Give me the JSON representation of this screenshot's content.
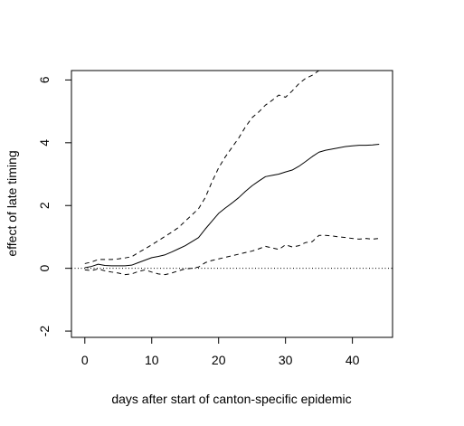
{
  "chart_data": {
    "type": "line",
    "title": "",
    "xlabel": "days after start of canton-specific epidemic",
    "ylabel": "effect of late timing",
    "xlim": [
      -2,
      46
    ],
    "ylim": [
      -2.2,
      6.3
    ],
    "xticks": [
      0,
      10,
      20,
      30,
      40
    ],
    "yticks": [
      -2,
      0,
      2,
      4,
      6
    ],
    "grid": false,
    "legend": "none",
    "reference_line": {
      "y": 0,
      "style": "dotted"
    },
    "series": [
      {
        "role": "estimate",
        "line_style": "solid",
        "x": [
          0,
          1,
          2,
          3,
          4,
          5,
          6,
          7,
          8,
          9,
          10,
          11,
          12,
          13,
          14,
          15,
          16,
          17,
          18,
          19,
          20,
          21,
          22,
          23,
          24,
          25,
          26,
          27,
          28,
          29,
          30,
          31,
          32,
          33,
          34,
          35,
          36,
          37,
          38,
          39,
          40,
          41,
          42,
          43,
          44
        ],
        "y": [
          0.02,
          0.06,
          0.13,
          0.09,
          0.08,
          0.08,
          0.08,
          0.1,
          0.18,
          0.26,
          0.34,
          0.38,
          0.43,
          0.52,
          0.62,
          0.72,
          0.85,
          0.98,
          1.25,
          1.5,
          1.75,
          1.92,
          2.08,
          2.25,
          2.45,
          2.63,
          2.78,
          2.92,
          2.96,
          3.0,
          3.07,
          3.13,
          3.25,
          3.4,
          3.56,
          3.7,
          3.76,
          3.8,
          3.84,
          3.88,
          3.9,
          3.92,
          3.92,
          3.93,
          3.95
        ]
      },
      {
        "role": "upper bound",
        "line_style": "dashed",
        "x": [
          0,
          1,
          2,
          3,
          4,
          5,
          6,
          7,
          8,
          9,
          10,
          11,
          12,
          13,
          14,
          15,
          16,
          17,
          18,
          19,
          20,
          21,
          22,
          23,
          24,
          25,
          26,
          27,
          28,
          29,
          30,
          31,
          32,
          33,
          34,
          35,
          36
        ],
        "y": [
          0.15,
          0.2,
          0.28,
          0.28,
          0.28,
          0.3,
          0.33,
          0.37,
          0.5,
          0.62,
          0.75,
          0.88,
          1.02,
          1.15,
          1.3,
          1.5,
          1.7,
          1.9,
          2.25,
          2.75,
          3.2,
          3.55,
          3.85,
          4.15,
          4.5,
          4.8,
          4.98,
          5.2,
          5.35,
          5.52,
          5.45,
          5.65,
          5.88,
          6.05,
          6.15,
          6.3,
          6.4
        ]
      },
      {
        "role": "lower bound",
        "line_style": "dashed",
        "x": [
          0,
          1,
          2,
          3,
          4,
          5,
          6,
          7,
          8,
          9,
          10,
          11,
          12,
          13,
          14,
          15,
          16,
          17,
          18,
          19,
          20,
          21,
          22,
          23,
          24,
          25,
          26,
          27,
          28,
          29,
          30,
          31,
          32,
          33,
          34,
          35,
          36,
          37,
          38,
          39,
          40,
          41,
          42,
          43,
          44
        ],
        "y": [
          -0.05,
          -0.07,
          -0.02,
          -0.08,
          -0.12,
          -0.15,
          -0.2,
          -0.18,
          -0.1,
          -0.05,
          -0.12,
          -0.18,
          -0.2,
          -0.15,
          -0.08,
          -0.02,
          0.0,
          0.04,
          0.18,
          0.25,
          0.3,
          0.35,
          0.4,
          0.45,
          0.5,
          0.55,
          0.62,
          0.7,
          0.65,
          0.6,
          0.75,
          0.68,
          0.72,
          0.82,
          0.85,
          1.05,
          1.05,
          1.03,
          1.0,
          0.98,
          0.95,
          0.93,
          0.95,
          0.93,
          0.95
        ]
      }
    ]
  }
}
